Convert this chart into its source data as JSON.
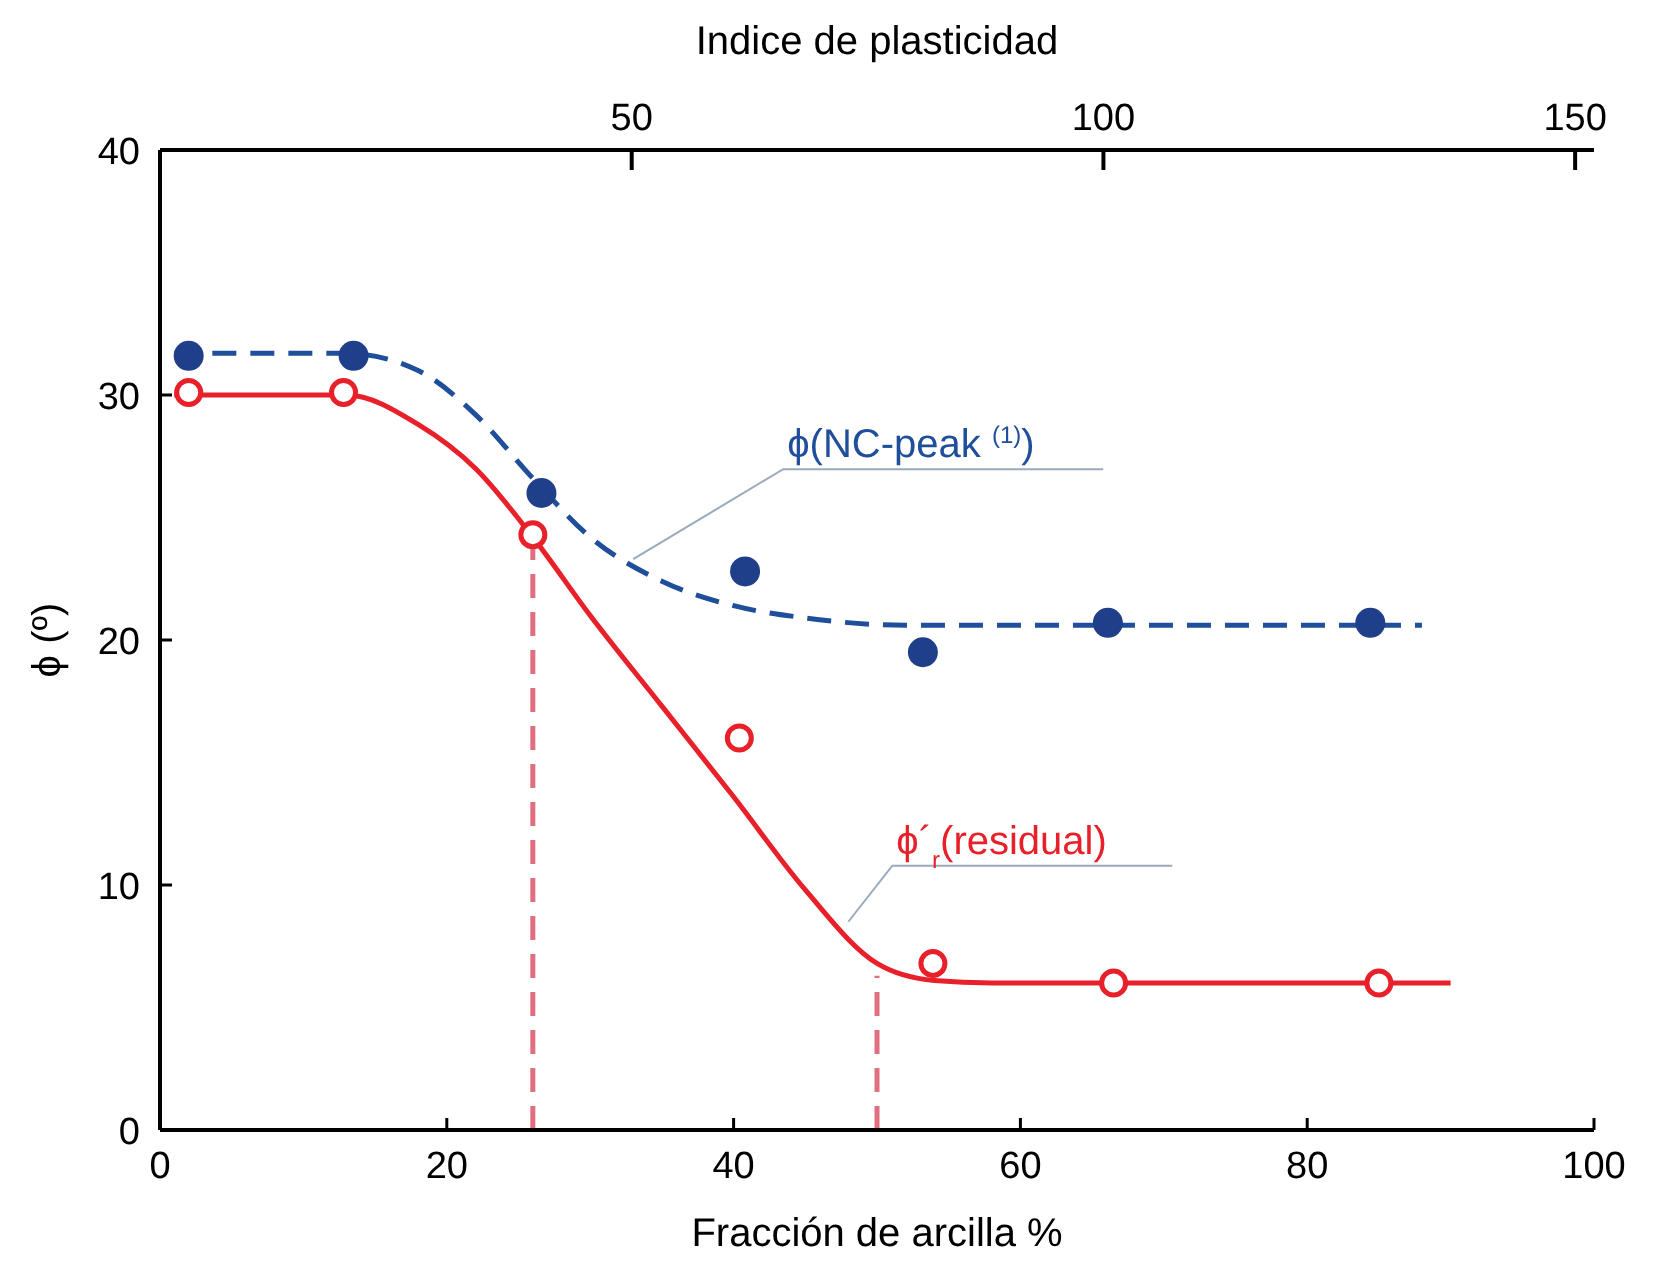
{
  "chart_data": {
    "type": "scatter",
    "xlabel": "Fracción de arcilla %",
    "ylabel": "ϕ (º)",
    "x2label": "Indice de plasticidad",
    "xlim": [
      0,
      100
    ],
    "xticks": [
      0,
      20,
      40,
      60,
      80,
      100
    ],
    "ylim": [
      0,
      40
    ],
    "yticks": [
      0,
      10,
      20,
      30,
      40
    ],
    "x2lim": [
      0,
      152
    ],
    "x2ticks": [
      50,
      100,
      150
    ],
    "grid": false,
    "series": [
      {
        "type": "line",
        "color": "#1f4e9a",
        "line_style": "dashed",
        "x": [
          1,
          13,
          18,
          22,
          26,
          30,
          35,
          40,
          45,
          52,
          88
        ],
        "values": [
          31.7,
          31.7,
          31,
          29.2,
          26.6,
          24.2,
          22.4,
          21.4,
          20.9,
          20.6,
          20.6
        ]
      },
      {
        "type": "line",
        "color": "#e8202a",
        "line_style": "solid",
        "x": [
          1,
          13,
          18,
          22,
          26,
          30,
          35,
          40,
          45,
          50,
          54,
          58,
          90
        ],
        "values": [
          30,
          30,
          28.8,
          27,
          24.2,
          21,
          17.3,
          13.6,
          9.8,
          6.8,
          6.1,
          6,
          6
        ]
      },
      {
        "type": "line",
        "color": "#e07080",
        "line_style": "dashed",
        "x": [
          26,
          26
        ],
        "values": [
          0,
          24.3
        ]
      },
      {
        "type": "line",
        "color": "#e07080",
        "line_style": "dashed",
        "x": [
          50,
          50
        ],
        "values": [
          0,
          6.3
        ]
      },
      {
        "color": "#1f3f8a",
        "marker": "circle",
        "x": [
          2,
          13.5,
          26.6,
          40.8,
          53.2,
          66.1,
          84.4
        ],
        "values": [
          31.6,
          31.6,
          26,
          22.8,
          19.5,
          20.7,
          20.7
        ]
      },
      {
        "color": "#e8202a",
        "marker": "circle",
        "x": [
          2,
          12.8,
          26,
          40.4,
          53.9,
          66.5,
          85
        ],
        "values": [
          30.1,
          30.1,
          24.3,
          16,
          6.8,
          6,
          6
        ]
      }
    ],
    "annotations": [
      {
        "text": "ϕ(NC-peak $^{(1)}$)",
        "x": 33,
        "y": 23.3
      },
      {
        "text": "ϕ´$_{r}$(residual)",
        "x": 48,
        "y": 8.5
      }
    ]
  }
}
